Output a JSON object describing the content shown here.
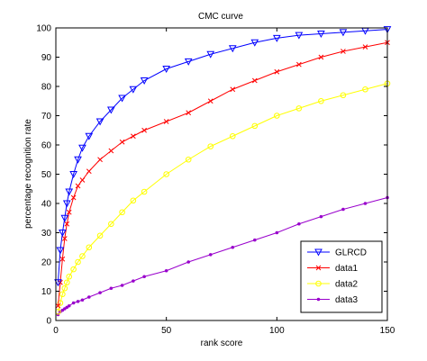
{
  "chart_data": {
    "type": "line",
    "title": "CMC curve",
    "xlabel": "rank score",
    "ylabel": "percentage recognition rate",
    "xlim": [
      0,
      150
    ],
    "ylim": [
      0,
      100
    ],
    "xticks": [
      0,
      50,
      100,
      150
    ],
    "yticks": [
      0,
      10,
      20,
      30,
      40,
      50,
      60,
      70,
      80,
      90,
      100
    ],
    "grid": false,
    "legend": "bottom-right",
    "x": [
      1,
      2,
      3,
      4,
      5,
      6,
      8,
      10,
      12,
      15,
      20,
      25,
      30,
      35,
      40,
      50,
      60,
      70,
      80,
      90,
      100,
      110,
      120,
      130,
      140,
      150
    ],
    "series": [
      {
        "name": "GLRCD",
        "color": "#0000ff",
        "marker": "triangle-down",
        "values": [
          13,
          24,
          30,
          35,
          40,
          44,
          50,
          55,
          59,
          63,
          68,
          72,
          76,
          79,
          82,
          86,
          88.5,
          91,
          93,
          95,
          96.5,
          97.5,
          98,
          98.5,
          99,
          99.5
        ]
      },
      {
        "name": "data1",
        "color": "#ff0000",
        "marker": "x",
        "values": [
          5,
          13,
          21,
          28,
          33,
          37,
          42,
          46,
          48,
          51,
          55,
          58,
          61,
          63,
          65,
          68,
          71,
          75,
          79,
          82,
          85,
          87.5,
          90,
          92,
          93.5,
          95
        ]
      },
      {
        "name": "data2",
        "color": "#ffff00",
        "marker": "circle",
        "values": [
          3,
          6,
          9,
          11,
          13,
          15,
          17.5,
          20,
          22,
          25,
          29,
          33,
          37,
          41,
          44,
          50,
          55,
          59.5,
          63,
          66.5,
          70,
          72.5,
          75,
          77,
          79,
          81
        ]
      },
      {
        "name": "data3",
        "color": "#9900cc",
        "marker": "dot",
        "values": [
          2,
          3,
          3.5,
          4,
          4.5,
          5,
          6,
          6.5,
          7,
          8,
          9.5,
          11,
          12,
          13.5,
          15,
          17,
          20,
          22.5,
          25,
          27.5,
          30,
          33,
          35.5,
          38,
          40,
          42
        ]
      }
    ]
  }
}
